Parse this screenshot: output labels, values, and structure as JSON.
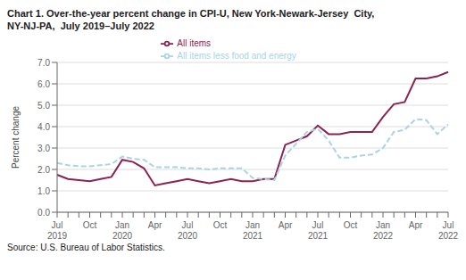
{
  "chart_data": {
    "type": "line",
    "title": "Chart 1. Over-the-year percent change in CPI-U, New York-Newark-Jersey  City,\nNY-NJ-PA,  July 2019–July 2022",
    "ylabel": "Percent change",
    "source": "Source: U.S. Bureau of Labor Statistics.",
    "categories": [
      "Jul\n2019",
      null,
      null,
      "Oct",
      null,
      null,
      "Jan\n2020",
      null,
      null,
      "Apr",
      null,
      null,
      "Jul\n2020",
      null,
      null,
      "Oct",
      null,
      null,
      "Jan\n2021",
      null,
      null,
      "Apr",
      null,
      null,
      "Jul\n2021",
      null,
      null,
      "Oct",
      null,
      null,
      "Jan\n2022",
      null,
      null,
      "Apr",
      null,
      null,
      "Jul\n2022"
    ],
    "series": [
      {
        "name": "All items",
        "color": "#8B2252",
        "line_style": "solid",
        "values": [
          1.75,
          1.55,
          1.5,
          1.45,
          1.55,
          1.65,
          2.45,
          2.35,
          2.05,
          1.25,
          1.35,
          1.45,
          1.55,
          1.45,
          1.35,
          1.45,
          1.55,
          1.45,
          1.45,
          1.55,
          1.55,
          3.15,
          3.35,
          3.55,
          4.05,
          3.65,
          3.65,
          3.75,
          3.75,
          3.75,
          4.45,
          5.05,
          5.15,
          6.25,
          6.25,
          6.35,
          6.55
        ]
      },
      {
        "name": "All items less food and energy",
        "color": "#A8D4E6",
        "line_style": "dashed",
        "values": [
          2.3,
          2.2,
          2.15,
          2.15,
          2.2,
          2.25,
          2.6,
          2.5,
          2.45,
          2.1,
          2.1,
          2.1,
          2.05,
          2.05,
          2.0,
          2.05,
          2.05,
          2.05,
          1.6,
          1.55,
          1.5,
          2.65,
          3.2,
          3.75,
          3.9,
          3.35,
          2.55,
          2.55,
          2.65,
          2.7,
          3.0,
          3.75,
          3.85,
          4.35,
          4.3,
          3.65,
          4.1
        ]
      }
    ],
    "ylim": [
      0.0,
      7.0
    ],
    "yticks": [
      {
        "value": 0,
        "label": "0.0"
      },
      {
        "value": 1,
        "label": "1.0"
      },
      {
        "value": 2,
        "label": "2.0"
      },
      {
        "value": 3,
        "label": "3.0"
      },
      {
        "value": 4,
        "label": "4.0"
      },
      {
        "value": 5,
        "label": "5.0"
      },
      {
        "value": 6,
        "label": "6.0"
      },
      {
        "value": 7,
        "label": "7.0"
      }
    ],
    "grid": true,
    "legend": "top"
  }
}
